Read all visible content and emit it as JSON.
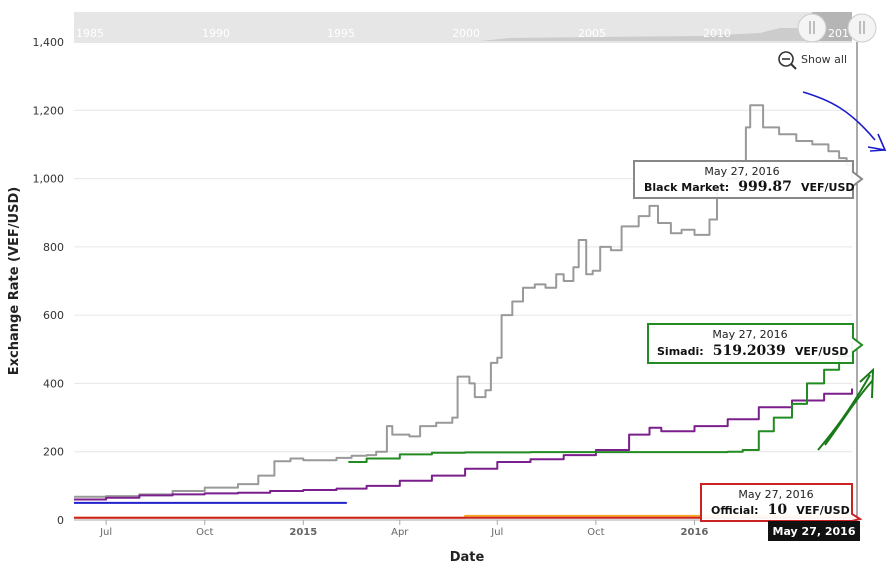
{
  "chart_data": {
    "type": "line",
    "xlabel": "Date",
    "ylabel": "Exchange Rate (VEF/USD)",
    "ylim": [
      0,
      1400
    ],
    "yticks": [
      "0",
      "200",
      "400",
      "600",
      "800",
      "1,000",
      "1,200",
      "1,400"
    ],
    "ytick_values": [
      0,
      200,
      400,
      600,
      800,
      1000,
      1200,
      1400
    ],
    "x_range": [
      "2014-06-01",
      "2016-05-27"
    ],
    "xticks": [
      {
        "date": "2014-07-01",
        "label": "Jul",
        "bold": false
      },
      {
        "date": "2014-10-01",
        "label": "Oct",
        "bold": false
      },
      {
        "date": "2015-01-01",
        "label": "2015",
        "bold": true
      },
      {
        "date": "2015-04-01",
        "label": "Apr",
        "bold": false
      },
      {
        "date": "2015-07-01",
        "label": "Jul",
        "bold": false
      },
      {
        "date": "2015-10-01",
        "label": "Oct",
        "bold": false
      },
      {
        "date": "2016-01-01",
        "label": "2016",
        "bold": true
      }
    ],
    "grid": true,
    "series": [
      {
        "key": "black",
        "color": "#999999",
        "points": [
          [
            "2014-06-01",
            68
          ],
          [
            "2014-07-01",
            70
          ],
          [
            "2014-08-01",
            75
          ],
          [
            "2014-09-01",
            85
          ],
          [
            "2014-10-01",
            95
          ],
          [
            "2014-11-01",
            105
          ],
          [
            "2014-11-20",
            130
          ],
          [
            "2014-12-05",
            172
          ],
          [
            "2014-12-20",
            180
          ],
          [
            "2015-01-01",
            175
          ],
          [
            "2015-02-01",
            182
          ],
          [
            "2015-02-15",
            188
          ],
          [
            "2015-03-01",
            190
          ],
          [
            "2015-03-10",
            200
          ],
          [
            "2015-03-20",
            275
          ],
          [
            "2015-03-25",
            250
          ],
          [
            "2015-04-10",
            245
          ],
          [
            "2015-04-20",
            275
          ],
          [
            "2015-05-05",
            285
          ],
          [
            "2015-05-20",
            300
          ],
          [
            "2015-05-25",
            420
          ],
          [
            "2015-06-05",
            400
          ],
          [
            "2015-06-10",
            360
          ],
          [
            "2015-06-20",
            380
          ],
          [
            "2015-06-25",
            460
          ],
          [
            "2015-07-01",
            475
          ],
          [
            "2015-07-05",
            600
          ],
          [
            "2015-07-15",
            640
          ],
          [
            "2015-07-25",
            680
          ],
          [
            "2015-08-05",
            690
          ],
          [
            "2015-08-15",
            680
          ],
          [
            "2015-08-25",
            720
          ],
          [
            "2015-09-01",
            700
          ],
          [
            "2015-09-10",
            740
          ],
          [
            "2015-09-15",
            820
          ],
          [
            "2015-09-22",
            720
          ],
          [
            "2015-09-28",
            730
          ],
          [
            "2015-10-05",
            800
          ],
          [
            "2015-10-15",
            790
          ],
          [
            "2015-10-25",
            860
          ],
          [
            "2015-11-10",
            890
          ],
          [
            "2015-11-20",
            920
          ],
          [
            "2015-11-28",
            870
          ],
          [
            "2015-12-10",
            840
          ],
          [
            "2015-12-20",
            850
          ],
          [
            "2016-01-01",
            835
          ],
          [
            "2016-01-15",
            880
          ],
          [
            "2016-01-22",
            970
          ],
          [
            "2016-02-01",
            1000
          ],
          [
            "2016-02-10",
            1050
          ],
          [
            "2016-02-18",
            1150
          ],
          [
            "2016-02-22",
            1215
          ],
          [
            "2016-03-05",
            1150
          ],
          [
            "2016-03-20",
            1130
          ],
          [
            "2016-04-05",
            1110
          ],
          [
            "2016-04-20",
            1100
          ],
          [
            "2016-05-05",
            1080
          ],
          [
            "2016-05-15",
            1060
          ],
          [
            "2016-05-22",
            1040
          ],
          [
            "2016-05-27",
            999.87
          ]
        ]
      },
      {
        "key": "purple",
        "color": "#7b1f8c",
        "points": [
          [
            "2014-06-01",
            60
          ],
          [
            "2014-07-01",
            65
          ],
          [
            "2014-08-01",
            72
          ],
          [
            "2014-09-01",
            75
          ],
          [
            "2014-10-01",
            78
          ],
          [
            "2014-11-01",
            80
          ],
          [
            "2014-12-01",
            85
          ],
          [
            "2015-01-01",
            88
          ],
          [
            "2015-02-01",
            92
          ],
          [
            "2015-03-01",
            100
          ],
          [
            "2015-04-01",
            115
          ],
          [
            "2015-05-01",
            130
          ],
          [
            "2015-06-01",
            150
          ],
          [
            "2015-07-01",
            170
          ],
          [
            "2015-08-01",
            178
          ],
          [
            "2015-09-01",
            190
          ],
          [
            "2015-10-01",
            205
          ],
          [
            "2015-11-01",
            250
          ],
          [
            "2015-11-20",
            270
          ],
          [
            "2015-12-01",
            260
          ],
          [
            "2016-01-01",
            275
          ],
          [
            "2016-02-01",
            295
          ],
          [
            "2016-03-01",
            330
          ],
          [
            "2016-04-01",
            350
          ],
          [
            "2016-05-01",
            370
          ],
          [
            "2016-05-27",
            385
          ]
        ]
      },
      {
        "key": "simadi",
        "color": "#228b22",
        "points": [
          [
            "2015-02-12",
            170
          ],
          [
            "2015-03-01",
            180
          ],
          [
            "2015-04-01",
            192
          ],
          [
            "2015-05-01",
            197
          ],
          [
            "2015-06-01",
            198
          ],
          [
            "2015-08-01",
            199
          ],
          [
            "2015-10-01",
            199
          ],
          [
            "2015-12-01",
            199
          ],
          [
            "2016-02-01",
            200
          ],
          [
            "2016-02-15",
            205
          ],
          [
            "2016-03-01",
            260
          ],
          [
            "2016-03-15",
            300
          ],
          [
            "2016-04-01",
            340
          ],
          [
            "2016-04-15",
            400
          ],
          [
            "2016-05-01",
            440
          ],
          [
            "2016-05-15",
            480
          ],
          [
            "2016-05-27",
            519.2039
          ]
        ]
      },
      {
        "key": "blue",
        "color": "#2222cc",
        "points": [
          [
            "2014-06-01",
            50
          ],
          [
            "2015-02-10",
            52
          ]
        ]
      },
      {
        "key": "official-orange",
        "color": "#f5a623",
        "points": [
          [
            "2014-06-01",
            6.3
          ],
          [
            "2015-06-01",
            12
          ],
          [
            "2016-05-27",
            13
          ]
        ]
      },
      {
        "key": "official-red",
        "color": "#cc2222",
        "points": [
          [
            "2014-06-01",
            6.3
          ],
          [
            "2016-05-27",
            10
          ]
        ]
      }
    ],
    "tooltips": [
      {
        "key": "black",
        "date": "May 27, 2016",
        "name": "Black Market:",
        "value": "999.87",
        "unit": "VEF/USD",
        "border": "#888888"
      },
      {
        "key": "simadi",
        "date": "May 27, 2016",
        "name": "Simadi:",
        "value": "519.2039",
        "unit": "VEF/USD",
        "border": "#228b22"
      },
      {
        "key": "official",
        "date": "May 27, 2016",
        "name": "Official:",
        "value": "10",
        "unit": "VEF/USD",
        "border": "#cc2222"
      }
    ],
    "crosshair_label": "May 27, 2016",
    "navigator_labels": [
      "1985",
      "1990",
      "1995",
      "2000",
      "2005",
      "2010",
      "201"
    ],
    "show_all_label": "Show all"
  }
}
